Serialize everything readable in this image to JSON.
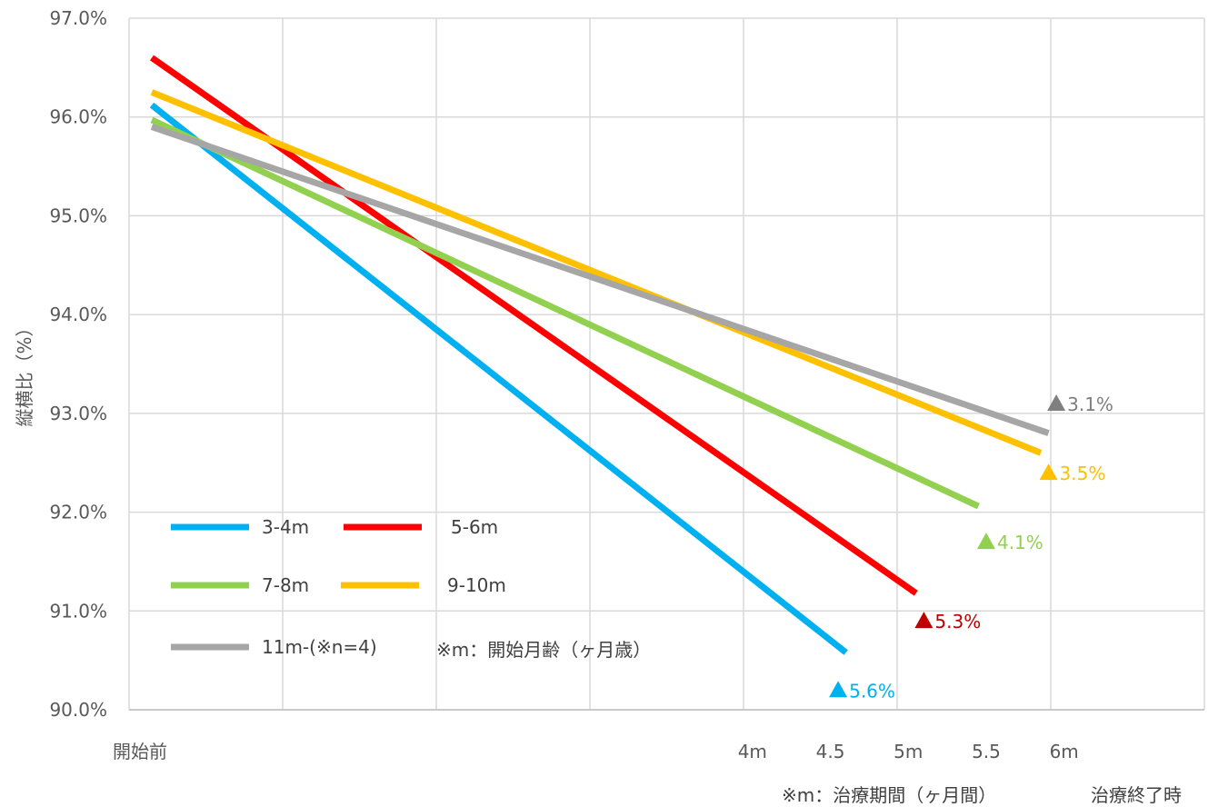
{
  "chart_data": {
    "type": "line",
    "ylabel": "縦横比（%）",
    "ylim": [
      90.0,
      97.0
    ],
    "yticks": [
      "90.0%",
      "91.0%",
      "92.0%",
      "93.0%",
      "94.0%",
      "95.0%",
      "96.0%",
      "97.0%"
    ],
    "ytick_values": [
      90,
      91,
      92,
      93,
      94,
      95,
      96,
      97
    ],
    "xlim": [
      0,
      6.9
    ],
    "xticks": [
      {
        "label": "開始前",
        "x": 0
      },
      {
        "label": "4m",
        "x": 4
      },
      {
        "label": "4.5",
        "x": 4.5
      },
      {
        "label": "5m",
        "x": 5
      },
      {
        "label": "5.5",
        "x": 5.5
      },
      {
        "label": "6m",
        "x": 6
      }
    ],
    "grid": true,
    "series": [
      {
        "name": "3-4m",
        "color": "#00b0f0",
        "x": [
          0,
          4.6
        ],
        "y": [
          96.12,
          90.58
        ],
        "delta_label": "5.6%",
        "delta_color": "#00b0f0",
        "marker_x": 4.55,
        "marker_y": 90.2
      },
      {
        "name": "5-6m",
        "color": "#ff0000",
        "x": [
          0,
          5.05
        ],
        "y": [
          96.6,
          91.18
        ],
        "delta_label": "5.3%",
        "delta_color": "#c00000",
        "marker_x": 5.1,
        "marker_y": 90.9
      },
      {
        "name": "7-8m",
        "color": "#92d050",
        "x": [
          0,
          5.45
        ],
        "y": [
          95.97,
          92.06
        ],
        "delta_label": "4.1%",
        "delta_color": "#92d050",
        "marker_x": 5.5,
        "marker_y": 91.7
      },
      {
        "name": "9-10m",
        "color": "#ffc000",
        "x": [
          0,
          5.85
        ],
        "y": [
          96.25,
          92.6
        ],
        "delta_label": "3.5%",
        "delta_color": "#ffc000",
        "marker_x": 5.9,
        "marker_y": 92.4
      },
      {
        "name": "11m-(※n=4)",
        "color": "#a6a6a6",
        "x": [
          0,
          5.9
        ],
        "y": [
          95.9,
          92.8
        ],
        "delta_label": "3.1%",
        "delta_color": "#7f7f7f",
        "marker_x": 5.95,
        "marker_y": 93.1
      }
    ],
    "annotations": {
      "legend_note": "※m：開始月齢（ヶ月歳）",
      "x_note": "※m：治療期間（ヶ月間）",
      "x_end_label": "治療終了時"
    }
  }
}
